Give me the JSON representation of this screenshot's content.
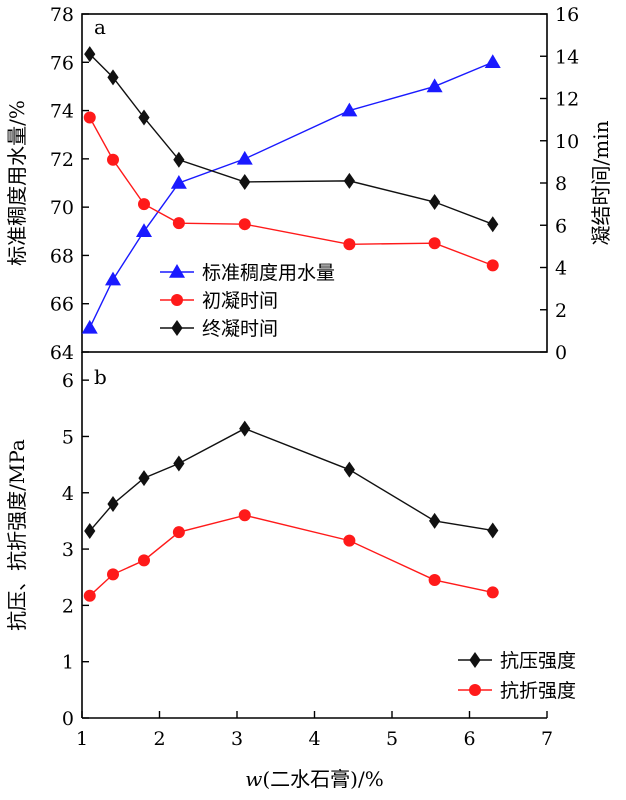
{
  "colors": {
    "water": "#1a1aff",
    "initial": "#ff1a1a",
    "final": "#111111",
    "compressive": "#111111",
    "flexural": "#ff1a1a"
  },
  "chart_data": [
    {
      "type": "line",
      "panel_label": "a",
      "x": [
        1.1,
        1.4,
        1.8,
        2.25,
        3.1,
        4.45,
        5.55,
        6.3
      ],
      "ylabel_left": "标准稠度用水量/%",
      "ylabel_right": "凝结时间/min",
      "ylim_left": [
        64,
        78
      ],
      "ylim_right": [
        0,
        16
      ],
      "yticks_left": [
        "64",
        "66",
        "68",
        "70",
        "72",
        "74",
        "76",
        "78"
      ],
      "yticks_right": [
        "0",
        "2",
        "4",
        "6",
        "8",
        "10",
        "12",
        "14",
        "16"
      ],
      "xlim": [
        1,
        7
      ],
      "legend_position": "center-left",
      "series": [
        {
          "name": "标准稠度用水量",
          "axis": "left",
          "marker": "triangle",
          "color": "#1a1aff",
          "values": [
            65.0,
            67.0,
            69.0,
            71.0,
            72.0,
            74.0,
            75.0,
            76.0
          ]
        },
        {
          "name": "初凝时间",
          "axis": "right",
          "marker": "circle",
          "color": "#ff1a1a",
          "values": [
            11.1,
            9.1,
            7.0,
            6.1,
            6.05,
            5.1,
            5.15,
            4.1
          ]
        },
        {
          "name": "终凝时间",
          "axis": "right",
          "marker": "diamond",
          "color": "#111111",
          "values": [
            14.1,
            13.0,
            11.1,
            9.1,
            8.05,
            8.1,
            7.1,
            6.05
          ]
        }
      ]
    },
    {
      "type": "line",
      "panel_label": "b",
      "x": [
        1.1,
        1.4,
        1.8,
        2.25,
        3.1,
        4.45,
        5.55,
        6.3
      ],
      "xlabel_w": "w",
      "xlabel_rest": "(二水石膏)/%",
      "xticks": [
        "1",
        "2",
        "3",
        "4",
        "5",
        "6",
        "7"
      ],
      "xlim": [
        1,
        7
      ],
      "ylabel": "抗压、抗折强度/MPa",
      "ylim": [
        0,
        6.5
      ],
      "yticks": [
        "0",
        "1",
        "2",
        "3",
        "4",
        "5",
        "6"
      ],
      "legend_position": "bottom-right",
      "series": [
        {
          "name": "抗压强度",
          "marker": "diamond",
          "color": "#111111",
          "values": [
            3.32,
            3.8,
            4.26,
            4.52,
            5.14,
            4.41,
            3.5,
            3.33
          ]
        },
        {
          "name": "抗折强度",
          "marker": "circle",
          "color": "#ff1a1a",
          "values": [
            2.17,
            2.55,
            2.8,
            3.3,
            3.6,
            3.15,
            2.45,
            2.23
          ]
        }
      ]
    }
  ]
}
